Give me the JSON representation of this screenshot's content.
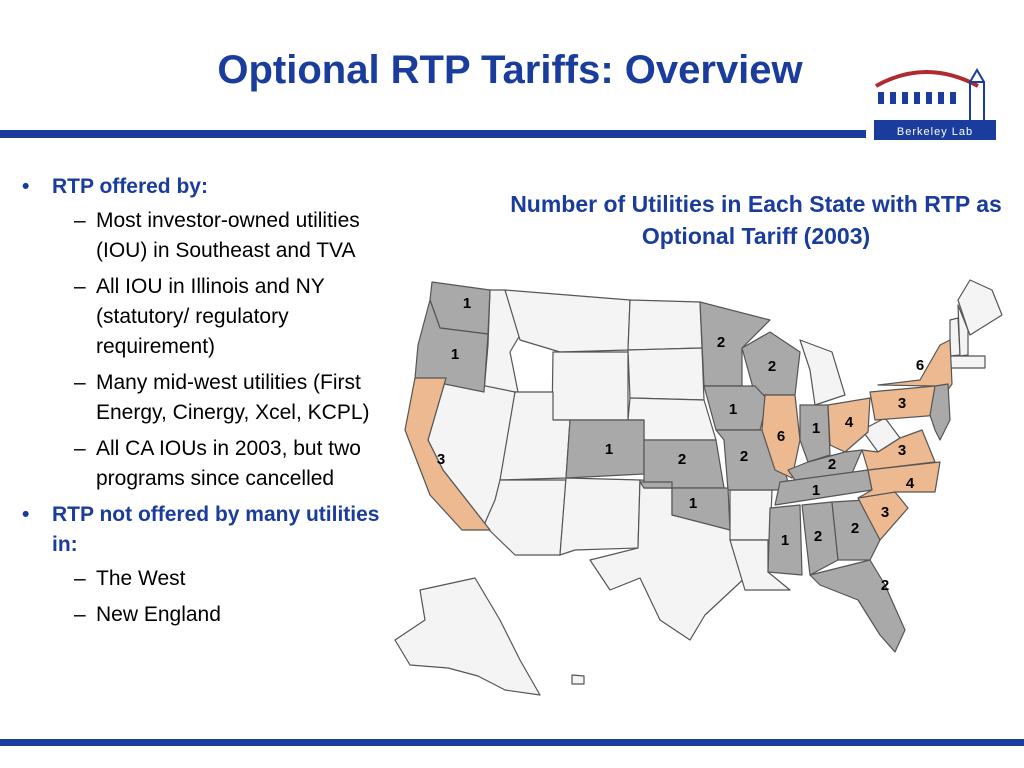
{
  "title": "Optional RTP Tariffs: Overview",
  "logo": {
    "text": "Berkeley Lab"
  },
  "bullets": {
    "b1": "RTP offered by:",
    "b1_subs": [
      "Most investor-owned utilities (IOU) in Southeast and TVA",
      "All IOU in Illinois and NY (statutory/ regulatory requirement)",
      "Many mid-west utilities (First Energy, Cinergy, Xcel, KCPL)",
      "All CA IOUs in 2003, but two programs since cancelled"
    ],
    "b2": "RTP not offered by many utilities in:",
    "b2_subs": [
      "The West",
      "New England"
    ]
  },
  "map": {
    "title": "Number of Utilities in Each State with RTP as Optional Tariff (2003)",
    "colors": {
      "none": "#f4f4f4",
      "grey": "#a9a9a9",
      "peach": "#ecb990",
      "border": "#555555",
      "accent": "#1a3c9c"
    },
    "states": [
      {
        "name": "WA",
        "count": "1"
      },
      {
        "name": "OR",
        "count": "1"
      },
      {
        "name": "CA",
        "count": "3"
      },
      {
        "name": "CO",
        "count": "1"
      },
      {
        "name": "MN",
        "count": "2"
      },
      {
        "name": "WI",
        "count": "2"
      },
      {
        "name": "IA",
        "count": "1"
      },
      {
        "name": "KS",
        "count": "2"
      },
      {
        "name": "MO",
        "count": "2"
      },
      {
        "name": "OK",
        "count": "1"
      },
      {
        "name": "IL",
        "count": "6"
      },
      {
        "name": "IN",
        "count": "1"
      },
      {
        "name": "OH",
        "count": "4"
      },
      {
        "name": "KY",
        "count": "2"
      },
      {
        "name": "TN",
        "count": "1"
      },
      {
        "name": "MS",
        "count": "1"
      },
      {
        "name": "AL",
        "count": "2"
      },
      {
        "name": "GA",
        "count": "2"
      },
      {
        "name": "FL",
        "count": "2"
      },
      {
        "name": "SC",
        "count": "3"
      },
      {
        "name": "NC",
        "count": "4"
      },
      {
        "name": "VA",
        "count": "3"
      },
      {
        "name": "PA",
        "count": "3"
      },
      {
        "name": "NY",
        "count": "6"
      }
    ]
  }
}
